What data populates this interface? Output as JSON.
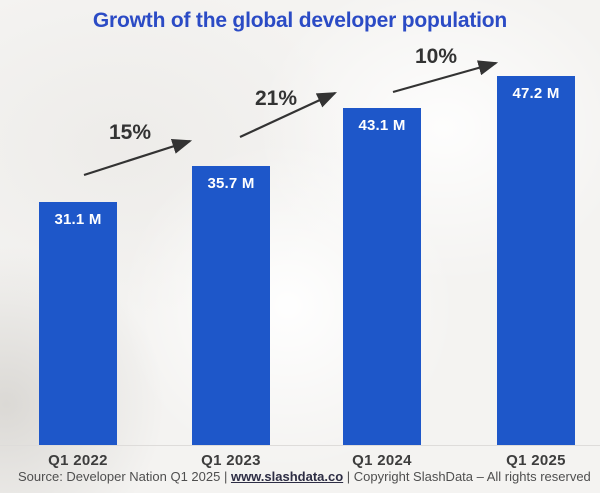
{
  "title": "Growth of the global developer population",
  "chart_data": {
    "type": "bar",
    "title": "Growth of the global developer population",
    "categories": [
      "Q1 2022",
      "Q1 2023",
      "Q1 2024",
      "Q1 2025"
    ],
    "values": [
      31.1,
      35.7,
      43.1,
      47.2
    ],
    "value_labels": [
      "31.1 M",
      "35.7 M",
      "43.1 M",
      "47.2 M"
    ],
    "value_unit": "M (millions of developers)",
    "growth_annotations": [
      "15%",
      "21%",
      "10%"
    ],
    "xlabel": "",
    "ylabel": "",
    "ylim": [
      0,
      50
    ],
    "grid": false,
    "legend": false,
    "bar_color": "#1e57c9"
  },
  "footer": {
    "source_prefix": "Source: Developer Nation Q1 2025 | ",
    "link": "www.slashdata.co",
    "source_suffix": " | Copyright SlashData – All rights reserved"
  },
  "colors": {
    "title": "#2b4bc5",
    "bar": "#1e57c9",
    "bar_value_text": "#ffffff",
    "annotation": "#333333",
    "axis_label": "#3d3d3d",
    "source_text": "#4f4f4f",
    "link_text": "#2d2d44",
    "background": "#f4f3f1"
  }
}
